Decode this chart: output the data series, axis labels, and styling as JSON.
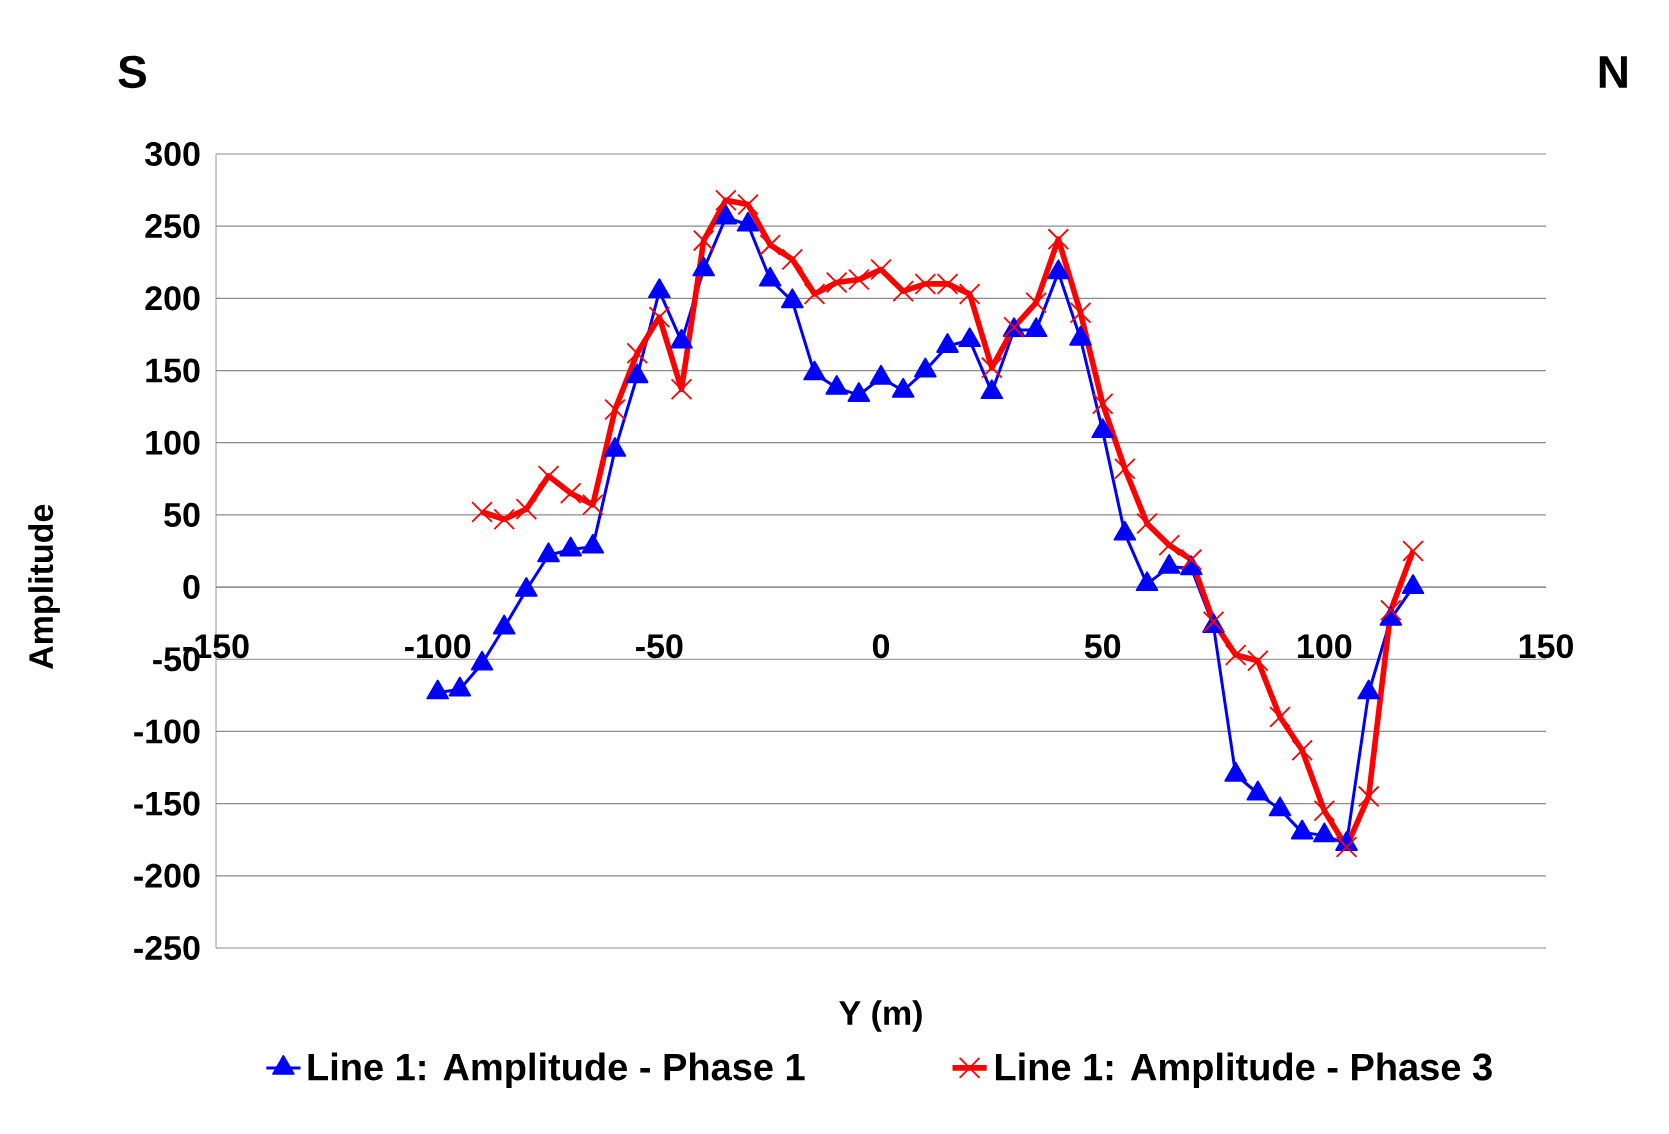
{
  "chart_data": {
    "type": "line",
    "xlabel": "Y (m)",
    "ylabel": "Amplitude",
    "annotations": [
      "S",
      "N"
    ],
    "xlim": [
      -150,
      150
    ],
    "xticks": [
      -150,
      -100,
      -50,
      0,
      50,
      100,
      150
    ],
    "ylim": [
      -250,
      300
    ],
    "yticks": [
      -250,
      -200,
      -150,
      -100,
      -50,
      0,
      50,
      100,
      150,
      200,
      250,
      300
    ],
    "grid": "y",
    "legend": "bottom",
    "line_style": "solid",
    "series": [
      {
        "name": "Line 1: Amplitude - Phase 1",
        "color": "#0000ff",
        "marker": "triangle",
        "x": [
          -100,
          -95,
          -90,
          -85,
          -80,
          -75,
          -70,
          -65,
          -60,
          -55,
          -50,
          -45,
          -40,
          -35,
          -30,
          -25,
          -20,
          -15,
          -10,
          -5,
          0,
          5,
          10,
          15,
          20,
          25,
          30,
          35,
          40,
          45,
          50,
          55,
          60,
          65,
          70,
          75,
          80,
          85,
          90,
          95,
          100,
          105,
          110,
          115,
          120
        ],
        "values": [
          -73,
          -71,
          -53,
          -28,
          -2,
          22,
          26,
          28,
          95,
          146,
          205,
          170,
          220,
          256,
          251,
          213,
          198,
          148,
          138,
          133,
          145,
          136,
          150,
          167,
          171,
          135,
          178,
          178,
          218,
          172,
          108,
          37,
          2,
          14,
          13,
          -27,
          -130,
          -143,
          -154,
          -170,
          -172,
          -178,
          -73,
          -22,
          0
        ]
      },
      {
        "name": "Line 1: Amplitude - Phase 3",
        "color": "#ff0000",
        "marker": "cross",
        "x": [
          -90,
          -85,
          -80,
          -75,
          -70,
          -65,
          -60,
          -55,
          -50,
          -45,
          -40,
          -35,
          -30,
          -25,
          -20,
          -15,
          -10,
          -5,
          0,
          5,
          10,
          15,
          20,
          25,
          30,
          35,
          40,
          45,
          50,
          55,
          60,
          65,
          70,
          75,
          80,
          85,
          90,
          95,
          100,
          105,
          110,
          115,
          120
        ],
        "values": [
          52,
          47,
          54,
          77,
          65,
          57,
          123,
          162,
          187,
          137,
          240,
          268,
          265,
          237,
          227,
          203,
          211,
          213,
          220,
          205,
          210,
          210,
          203,
          152,
          180,
          197,
          241,
          190,
          127,
          82,
          44,
          29,
          19,
          -24,
          -47,
          -51,
          -90,
          -113,
          -155,
          -180,
          -145,
          -16,
          25
        ]
      }
    ]
  }
}
